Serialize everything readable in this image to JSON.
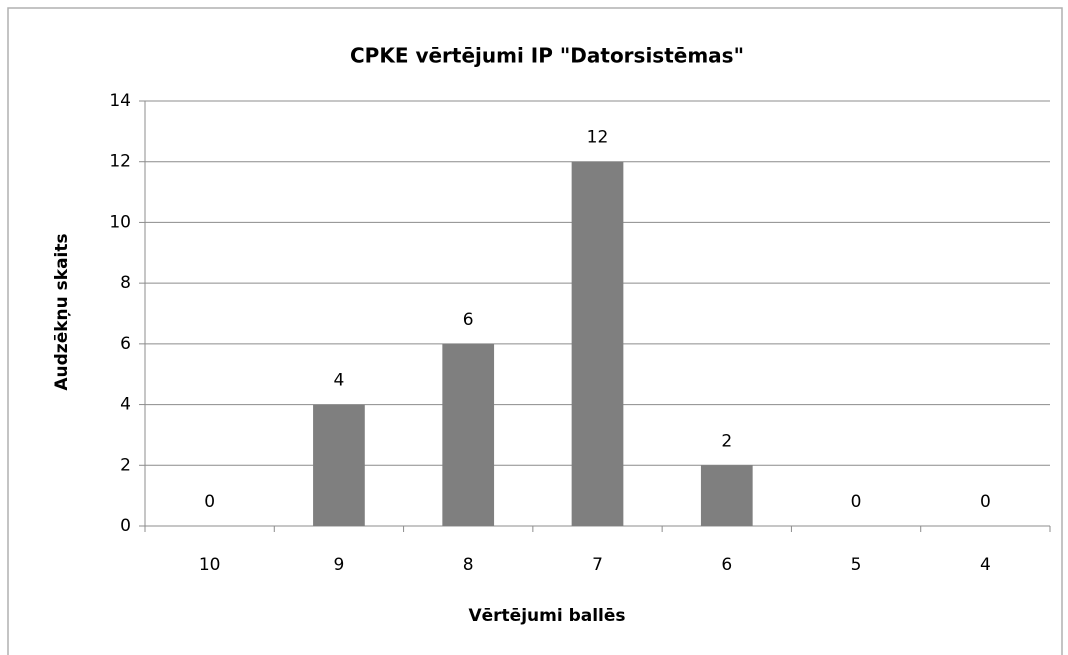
{
  "chart_data": {
    "type": "bar",
    "title": "CPKE vērtējumi IP \"Datorsistēmas\"",
    "x_label": "Vērtējumi ballēs",
    "y_label": "Audzēkņu skaits",
    "categories": [
      "10",
      "9",
      "8",
      "7",
      "6",
      "5",
      "4"
    ],
    "values": [
      0,
      4,
      6,
      12,
      2,
      0,
      0
    ],
    "color": "#7f7f7f",
    "ylim": [
      0,
      14
    ],
    "yticks": [
      0,
      2,
      4,
      6,
      8,
      10,
      12,
      14
    ],
    "grid": true
  }
}
